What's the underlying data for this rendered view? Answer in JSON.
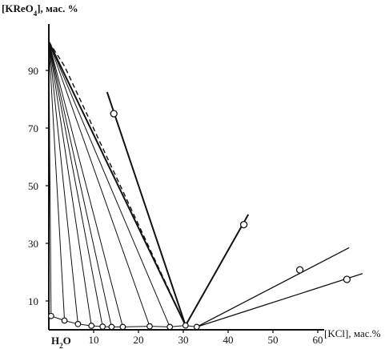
{
  "chart_data": {
    "type": "scatter",
    "title": "",
    "ylabel": "[KReO4], мас. %",
    "ylabel_base": "[KReO",
    "ylabel_sub": "4",
    "ylabel_suffix": "], мас. %",
    "xlabel": "[KCl], мас.%",
    "origin_label": "H2O",
    "origin_label_base": "H",
    "origin_label_sub": "2",
    "origin_label_suffix": "O",
    "xlim": [
      0,
      65
    ],
    "ylim": [
      0,
      100
    ],
    "x_ticks": [
      10,
      20,
      30,
      40,
      50,
      60
    ],
    "y_ticks": [
      10,
      30,
      50,
      70,
      90
    ],
    "grid": false,
    "legend": "none",
    "solubility_points": [
      {
        "x": 0.5,
        "y": 4.8
      },
      {
        "x": 3.5,
        "y": 3.2
      },
      {
        "x": 6.5,
        "y": 2.0
      },
      {
        "x": 9.5,
        "y": 1.4
      },
      {
        "x": 12.0,
        "y": 1.1
      },
      {
        "x": 14.0,
        "y": 1.0
      },
      {
        "x": 16.5,
        "y": 1.0
      },
      {
        "x": 22.5,
        "y": 1.2
      },
      {
        "x": 27.0,
        "y": 1.0
      },
      {
        "x": 30.5,
        "y": 1.5
      },
      {
        "x": 33.0,
        "y": 1.0
      }
    ],
    "tie_line_apex": {
      "x": 0,
      "y": 100
    },
    "tie_line_ends": [
      {
        "x": 0.5,
        "y": 4.8
      },
      {
        "x": 3.5,
        "y": 3.2
      },
      {
        "x": 6.5,
        "y": 2.0
      },
      {
        "x": 9.5,
        "y": 1.4
      },
      {
        "x": 12.0,
        "y": 1.1
      },
      {
        "x": 14.0,
        "y": 1.0
      },
      {
        "x": 16.5,
        "y": 1.0
      },
      {
        "x": 22.5,
        "y": 1.2
      },
      {
        "x": 27.0,
        "y": 1.0
      }
    ],
    "heavy_line": {
      "x1": 0,
      "y1": 100,
      "x2": 30.5,
      "y2": 1.5
    },
    "dashed_line": {
      "x1": 0,
      "y1": 100,
      "x2": 30.5,
      "y2": 1.5
    },
    "dashed_line_mid": {
      "x": 3.5,
      "y": 91.5
    },
    "rays": [
      {
        "x1": 30.5,
        "y1": 1.5,
        "x2": 13.0,
        "y2": 82.5
      },
      {
        "x1": 30.5,
        "y1": 1.5,
        "x2": 44.5,
        "y2": 40.0
      },
      {
        "x1": 33.0,
        "y1": 1.0,
        "x2": 67.0,
        "y2": 28.5
      },
      {
        "x1": 33.0,
        "y1": 1.0,
        "x2": 70.0,
        "y2": 19.5
      }
    ],
    "ray_points": [
      {
        "x": 14.5,
        "y": 75.0
      },
      {
        "x": 43.5,
        "y": 36.5
      },
      {
        "x": 56.0,
        "y": 20.8
      },
      {
        "x": 66.5,
        "y": 17.5
      }
    ]
  }
}
